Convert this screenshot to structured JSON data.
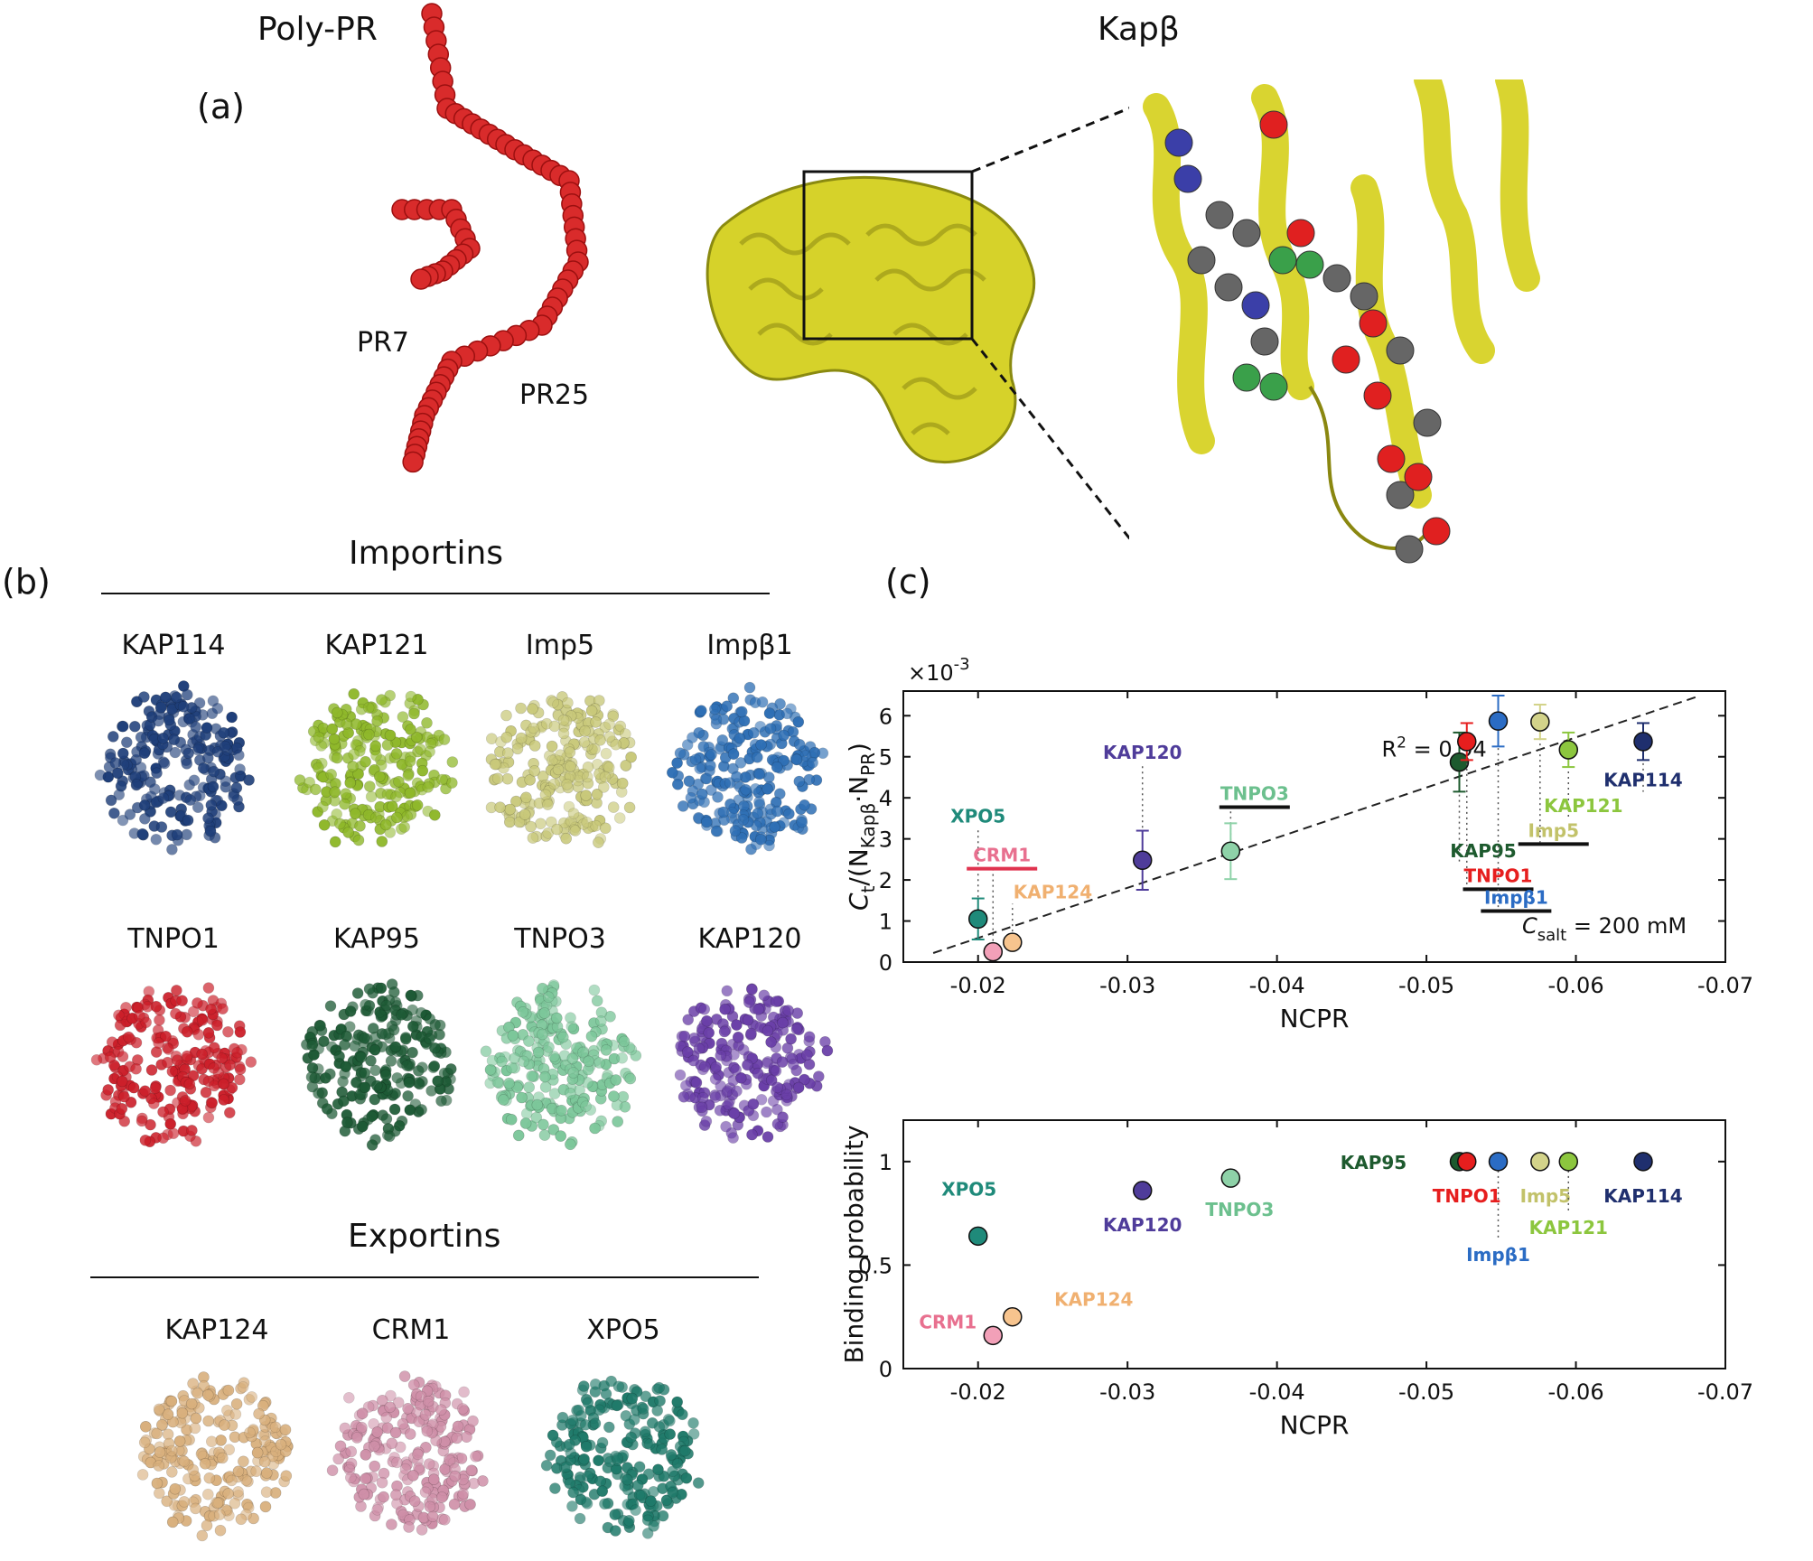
{
  "panel_a": {
    "tag": "(a)",
    "polypr_title": "Poly-PR",
    "kap_title": "Kapβ",
    "pr7_label": "PR7",
    "pr25_label": "PR25"
  },
  "panel_b": {
    "tag": "(b)",
    "importins_title": "Importins",
    "exportins_title": "Exportins",
    "importins": [
      {
        "name": "KAP114",
        "color": "#1f3f7a"
      },
      {
        "name": "KAP121",
        "color": "#8fb82a"
      },
      {
        "name": "Imp5",
        "color": "#c9c97a"
      },
      {
        "name": "Impβ1",
        "color": "#2e6fb5"
      },
      {
        "name": "TNPO1",
        "color": "#cc1f2a"
      },
      {
        "name": "KAP95",
        "color": "#1d5a35"
      },
      {
        "name": "TNPO3",
        "color": "#7cc79a"
      },
      {
        "name": "KAP120",
        "color": "#6a3fa8"
      }
    ],
    "exportins": [
      {
        "name": "KAP124",
        "color": "#d9b07d"
      },
      {
        "name": "CRM1",
        "color": "#cf8fa8"
      },
      {
        "name": "XPO5",
        "color": "#1f7a6a"
      }
    ]
  },
  "panel_c": {
    "tag": "(c)",
    "top_ylabel": "C_t/(N_Kapβ·N_PR)",
    "top_ylabel_main": "C",
    "top_ylabel_sub1": "t",
    "top_ylabel_mid": "/(N",
    "top_ylabel_sub2": "Kapβ",
    "top_ylabel_mid2": "·N",
    "top_ylabel_sub3": "PR",
    "top_ylabel_end": ")",
    "top_scale": "×10",
    "top_scale_exp": "-3",
    "r2_label": "R",
    "r2_exp": "2",
    "r2_value": " = 0.94",
    "csalt_main": "C",
    "csalt_sub": "salt",
    "csalt_value": " = 200 mM",
    "xlabel": "NCPR",
    "bottom_ylabel": "Binding probability"
  },
  "chart_data": [
    {
      "type": "scatter",
      "title": "",
      "xlabel": "NCPR",
      "ylabel": "C_t/(N_Kapβ·N_PR) ×10^-3",
      "xlim": [
        -0.015,
        -0.07
      ],
      "ylim": [
        0,
        6.6
      ],
      "xticks": [
        "-0.02",
        "-0.03",
        "-0.04",
        "-0.05",
        "-0.06",
        "-0.07"
      ],
      "yticks": [
        "0",
        "1",
        "2",
        "3",
        "4",
        "5",
        "6"
      ],
      "fit_line": {
        "x": [
          -0.017,
          -0.068
        ],
        "y": [
          0.22,
          6.45
        ]
      },
      "annotations": [
        "R^2 = 0.94",
        "C_salt = 200 mM"
      ],
      "points": [
        {
          "name": "XPO5",
          "x": -0.02,
          "y": 1.05,
          "err": 0.5,
          "color": "#1f8a7a",
          "label_color": "#1f8a7a"
        },
        {
          "name": "CRM1",
          "x": -0.021,
          "y": 0.25,
          "err": 0.0,
          "color": "#f2a0b8",
          "label_color": "#e8708f"
        },
        {
          "name": "KAP124",
          "x": -0.0223,
          "y": 0.48,
          "err": 0.0,
          "color": "#f7c48e",
          "label_color": "#f0b070"
        },
        {
          "name": "KAP120",
          "x": -0.031,
          "y": 2.48,
          "err": 0.72,
          "color": "#4f3c9a",
          "label_color": "#4f3c9a"
        },
        {
          "name": "TNPO3",
          "x": -0.0369,
          "y": 2.7,
          "err": 0.68,
          "color": "#8ed2a8",
          "label_color": "#6cc08e"
        },
        {
          "name": "KAP95",
          "x": -0.0522,
          "y": 4.87,
          "err": 0.72,
          "color": "#1d5a2e",
          "label_color": "#1d5a2e"
        },
        {
          "name": "TNPO1",
          "x": -0.0527,
          "y": 5.37,
          "err": 0.45,
          "color": "#e61e1e",
          "label_color": "#e61e1e"
        },
        {
          "name": "Impβ1",
          "x": -0.0548,
          "y": 5.87,
          "err": 0.62,
          "color": "#2b6cc4",
          "label_color": "#2b6cc4"
        },
        {
          "name": "Imp5",
          "x": -0.0576,
          "y": 5.85,
          "err": 0.42,
          "color": "#d3d38a",
          "label_color": "#c2c26a"
        },
        {
          "name": "KAP121",
          "x": -0.0595,
          "y": 5.17,
          "err": 0.42,
          "color": "#8cc63e",
          "label_color": "#8cc63e"
        },
        {
          "name": "KAP114",
          "x": -0.0645,
          "y": 5.37,
          "err": 0.45,
          "color": "#1f2f6e",
          "label_color": "#1f2f6e"
        }
      ]
    },
    {
      "type": "scatter",
      "title": "",
      "xlabel": "NCPR",
      "ylabel": "Binding probability",
      "xlim": [
        -0.015,
        -0.07
      ],
      "ylim": [
        0,
        1.2
      ],
      "xticks": [
        "-0.02",
        "-0.03",
        "-0.04",
        "-0.05",
        "-0.06",
        "-0.07"
      ],
      "yticks": [
        "0",
        "0.5",
        "1"
      ],
      "points": [
        {
          "name": "XPO5",
          "x": -0.02,
          "y": 0.64,
          "color": "#1f8a7a"
        },
        {
          "name": "CRM1",
          "x": -0.021,
          "y": 0.16,
          "color": "#f2a0b8"
        },
        {
          "name": "KAP124",
          "x": -0.0223,
          "y": 0.25,
          "color": "#f7c48e"
        },
        {
          "name": "KAP120",
          "x": -0.031,
          "y": 0.86,
          "color": "#4f3c9a"
        },
        {
          "name": "TNPO3",
          "x": -0.0369,
          "y": 0.92,
          "color": "#8ed2a8"
        },
        {
          "name": "KAP95",
          "x": -0.0522,
          "y": 1.0,
          "color": "#1d5a2e"
        },
        {
          "name": "TNPO1",
          "x": -0.0527,
          "y": 1.0,
          "color": "#e61e1e"
        },
        {
          "name": "Impβ1",
          "x": -0.0548,
          "y": 1.0,
          "color": "#2b6cc4"
        },
        {
          "name": "Imp5",
          "x": -0.0576,
          "y": 1.0,
          "color": "#d3d38a"
        },
        {
          "name": "KAP121",
          "x": -0.0595,
          "y": 1.0,
          "color": "#8cc63e"
        },
        {
          "name": "KAP114",
          "x": -0.0645,
          "y": 1.0,
          "color": "#1f2f6e"
        }
      ]
    }
  ]
}
